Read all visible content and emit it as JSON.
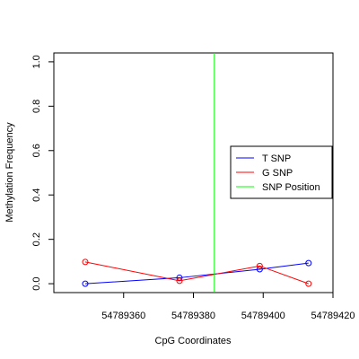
{
  "chart_data": {
    "type": "line",
    "title": "",
    "xlabel": "CpG Coordinates",
    "ylabel": "Methylation Frequency",
    "xlim": [
      54789340,
      54789420
    ],
    "ylim": [
      -0.04,
      1.04
    ],
    "x_ticks": [
      54789360,
      54789380,
      54789400,
      54789420
    ],
    "y_ticks": [
      0.0,
      0.2,
      0.4,
      0.6,
      0.8,
      1.0
    ],
    "x_tick_labels": [
      "54789360",
      "54789380",
      "54789400",
      "54789420"
    ],
    "y_tick_labels": [
      "0.0",
      "0.2",
      "0.4",
      "0.6",
      "0.8",
      "1.0"
    ],
    "grid": false,
    "legend_position": "right",
    "series": [
      {
        "name": "T SNP",
        "color": "#0000ff",
        "points": [
          [
            54789349,
            0.0
          ],
          [
            54789376,
            0.027
          ],
          [
            54789399,
            0.065
          ],
          [
            54789413,
            0.093
          ]
        ]
      },
      {
        "name": "G SNP",
        "color": "#ff0000",
        "points": [
          [
            54789349,
            0.098
          ],
          [
            54789376,
            0.013
          ],
          [
            54789399,
            0.08
          ],
          [
            54789413,
            0.0
          ]
        ]
      }
    ],
    "snp_position": {
      "name": "SNP Position",
      "color": "#00ff00",
      "x": 54789386
    }
  }
}
